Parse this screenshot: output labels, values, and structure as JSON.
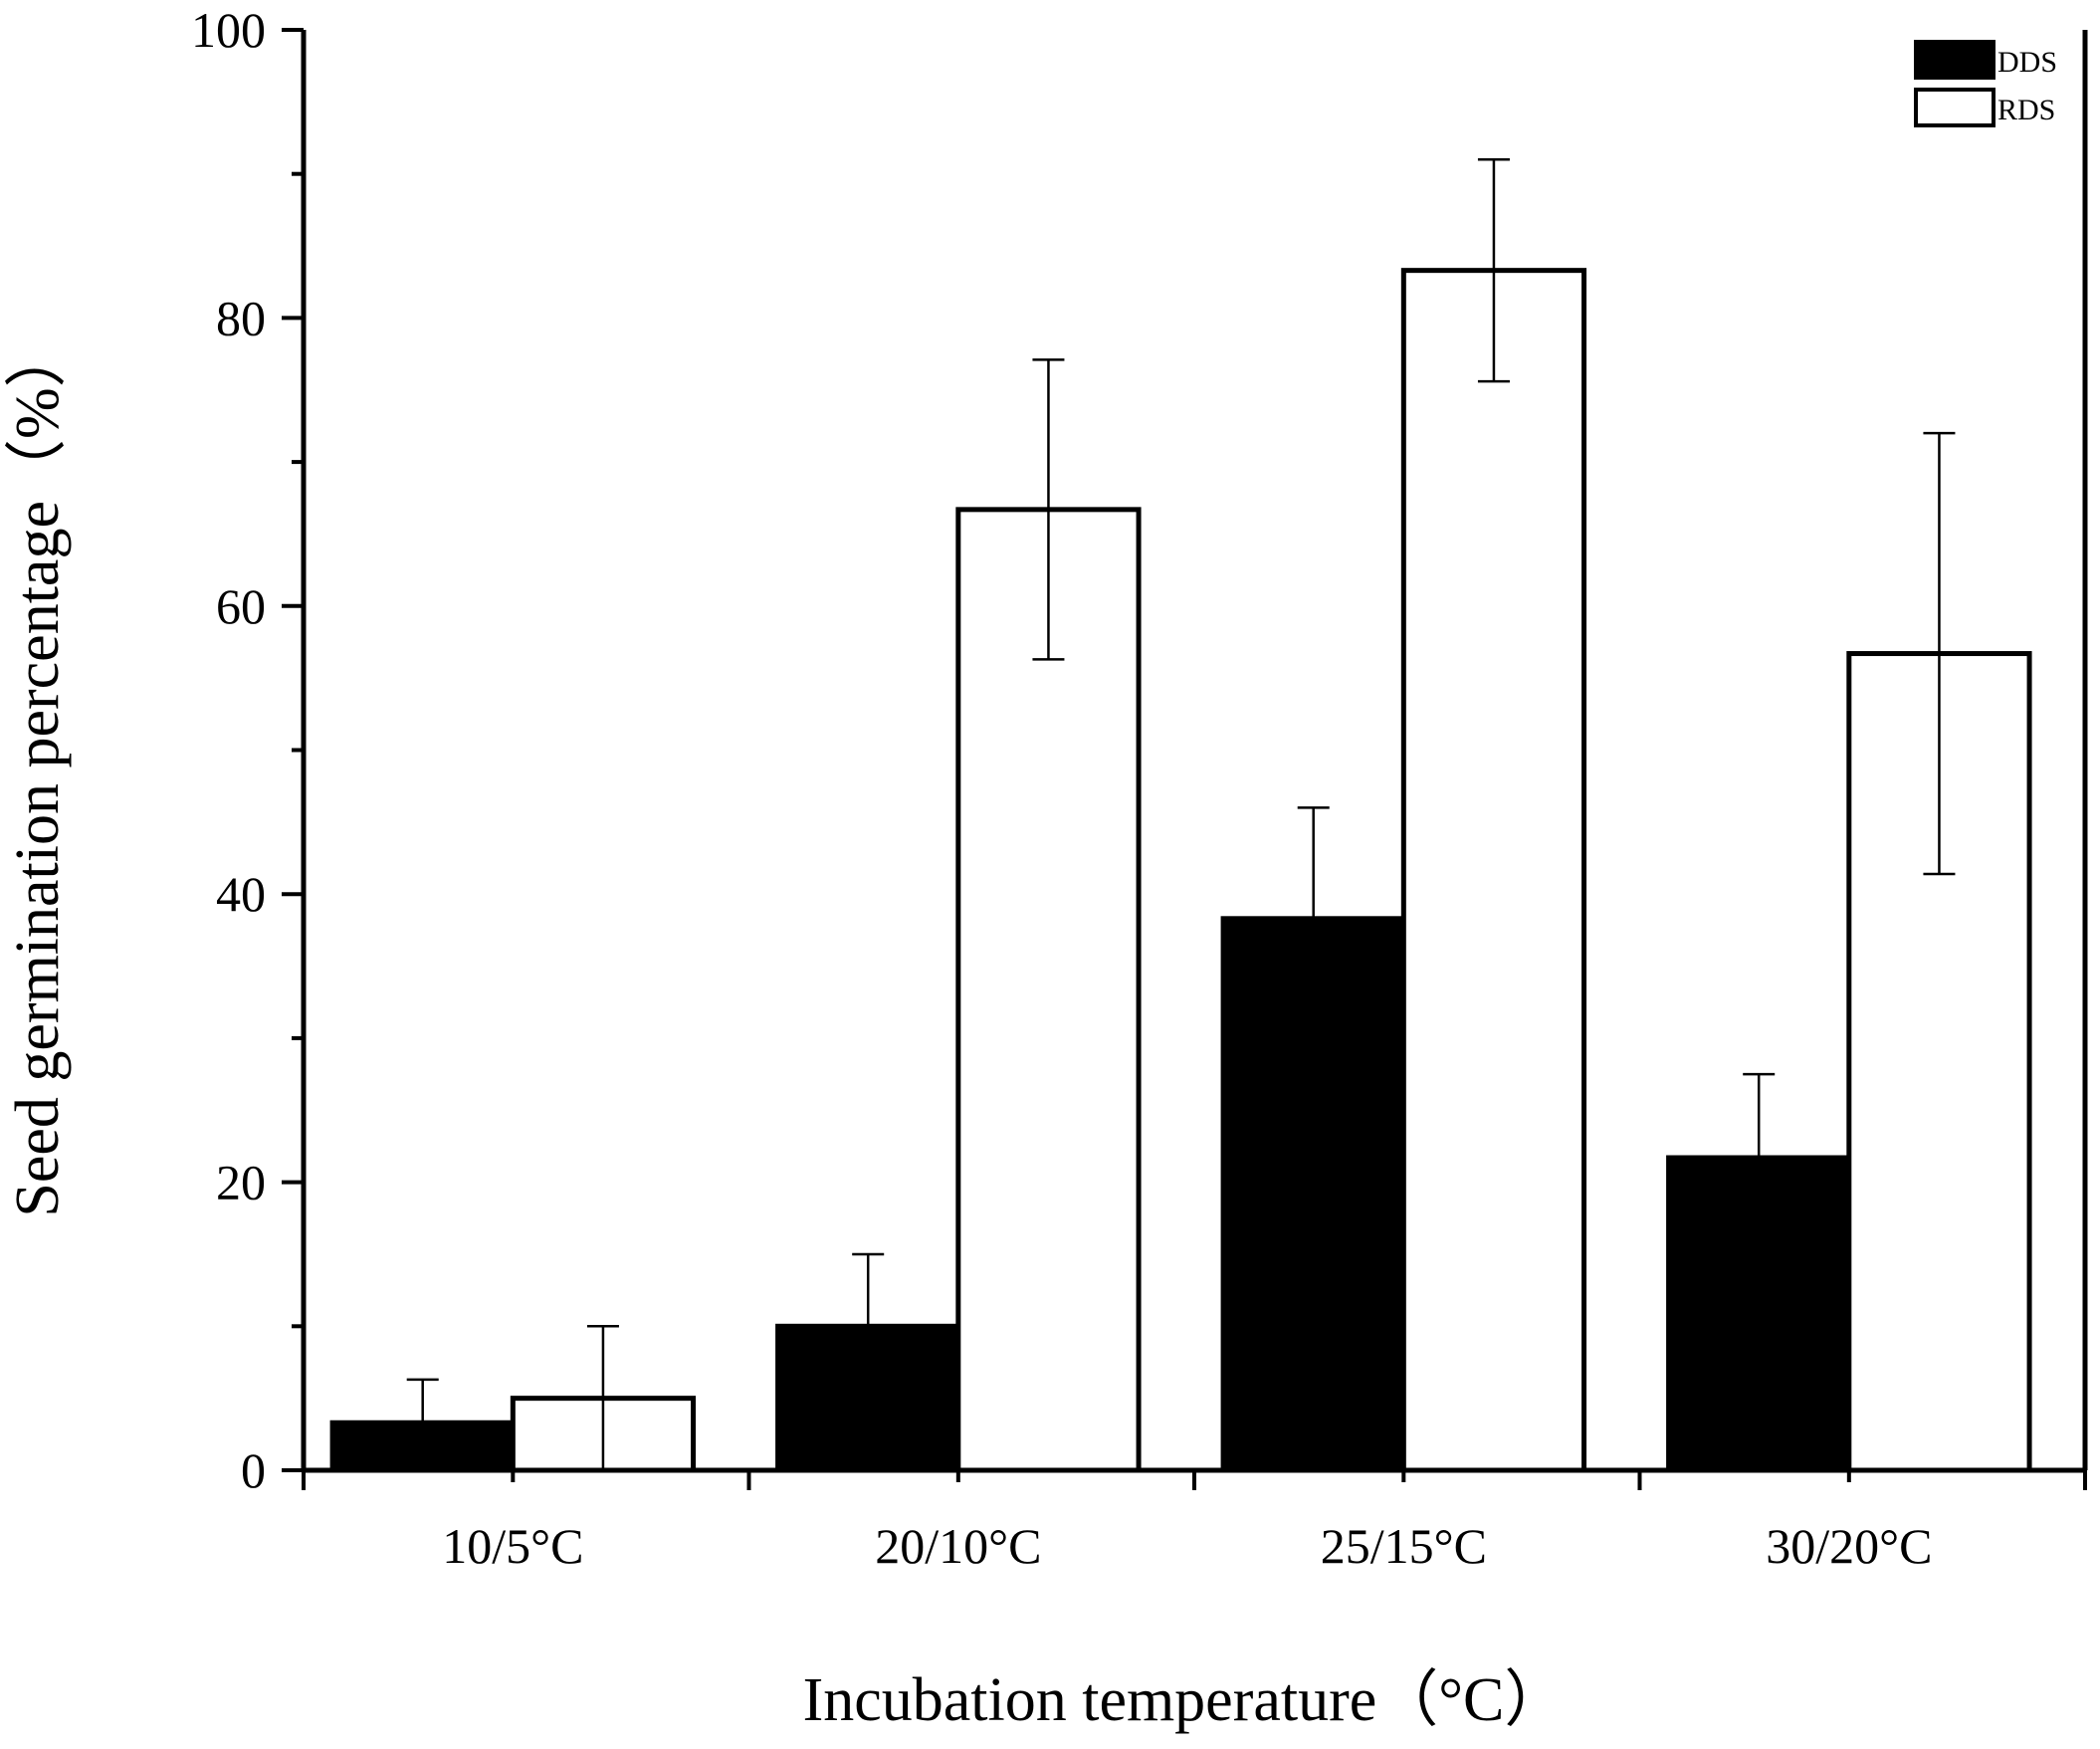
{
  "chart_data": {
    "type": "bar",
    "categories": [
      "10/5°C",
      "20/10°C",
      "25/15°C",
      "30/20°C"
    ],
    "series": [
      {
        "name": "DDS",
        "color": "#000000",
        "values": [
          3.3,
          10.0,
          38.3,
          21.7
        ],
        "errors": [
          3.0,
          5.0,
          7.7,
          5.8
        ]
      },
      {
        "name": "RDS",
        "color": "#ffffff",
        "values": [
          5.0,
          66.7,
          83.3,
          56.7
        ],
        "errors": [
          5.0,
          10.4,
          7.7,
          15.3
        ]
      }
    ],
    "xlabel": "Incubation temperature（°C）",
    "ylabel": "Seed germination percentage（%）",
    "ylim": [
      0,
      100
    ],
    "yticks": [
      0,
      20,
      40,
      60,
      80,
      100
    ],
    "legend_position": "top-right",
    "grid": false
  }
}
